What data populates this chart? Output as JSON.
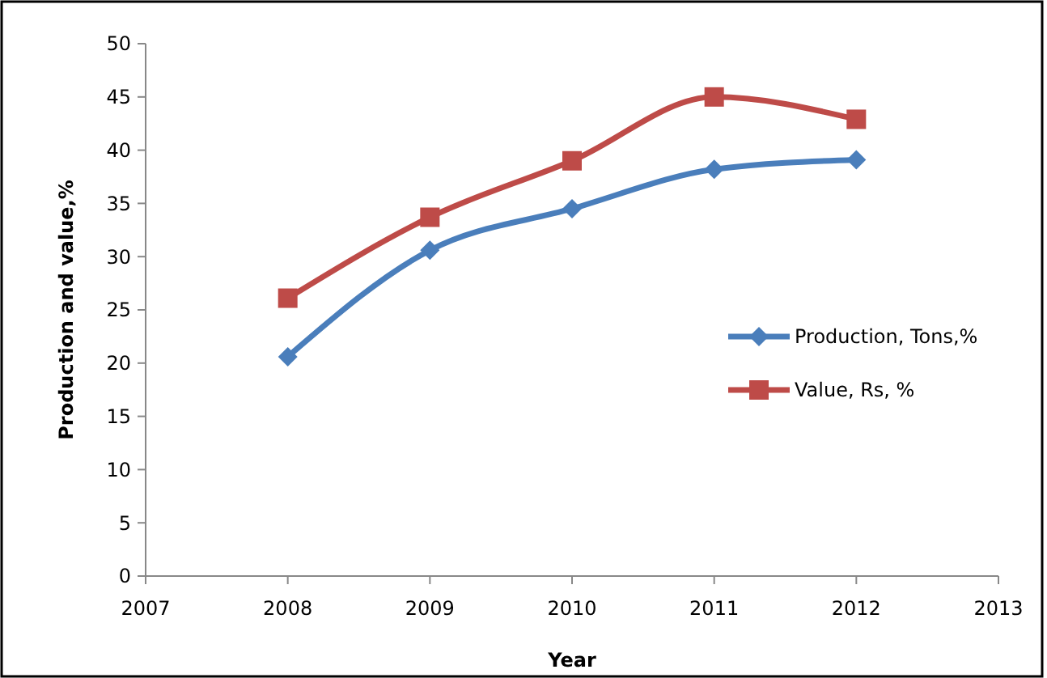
{
  "chart_data": {
    "type": "line",
    "xlabel": "Year",
    "ylabel": "Production and value,%",
    "x": [
      2008,
      2009,
      2010,
      2011,
      2012
    ],
    "series": [
      {
        "name": "Production, Tons,%",
        "color": "#4a7ebb",
        "marker": "diamond",
        "values": [
          20.6,
          30.6,
          34.5,
          38.2,
          39.1
        ]
      },
      {
        "name": "Value, Rs, %",
        "color": "#be4b48",
        "marker": "square",
        "values": [
          26.1,
          33.7,
          39.0,
          45.0,
          42.9
        ]
      }
    ],
    "xlim": [
      2007,
      2013
    ],
    "xticks": [
      2007,
      2008,
      2009,
      2010,
      2011,
      2012,
      2013
    ],
    "ylim": [
      0,
      50
    ],
    "yticks": [
      0,
      5,
      10,
      15,
      20,
      25,
      30,
      35,
      40,
      45,
      50
    ],
    "grid": false,
    "legend": "right",
    "line_style": "solid"
  }
}
